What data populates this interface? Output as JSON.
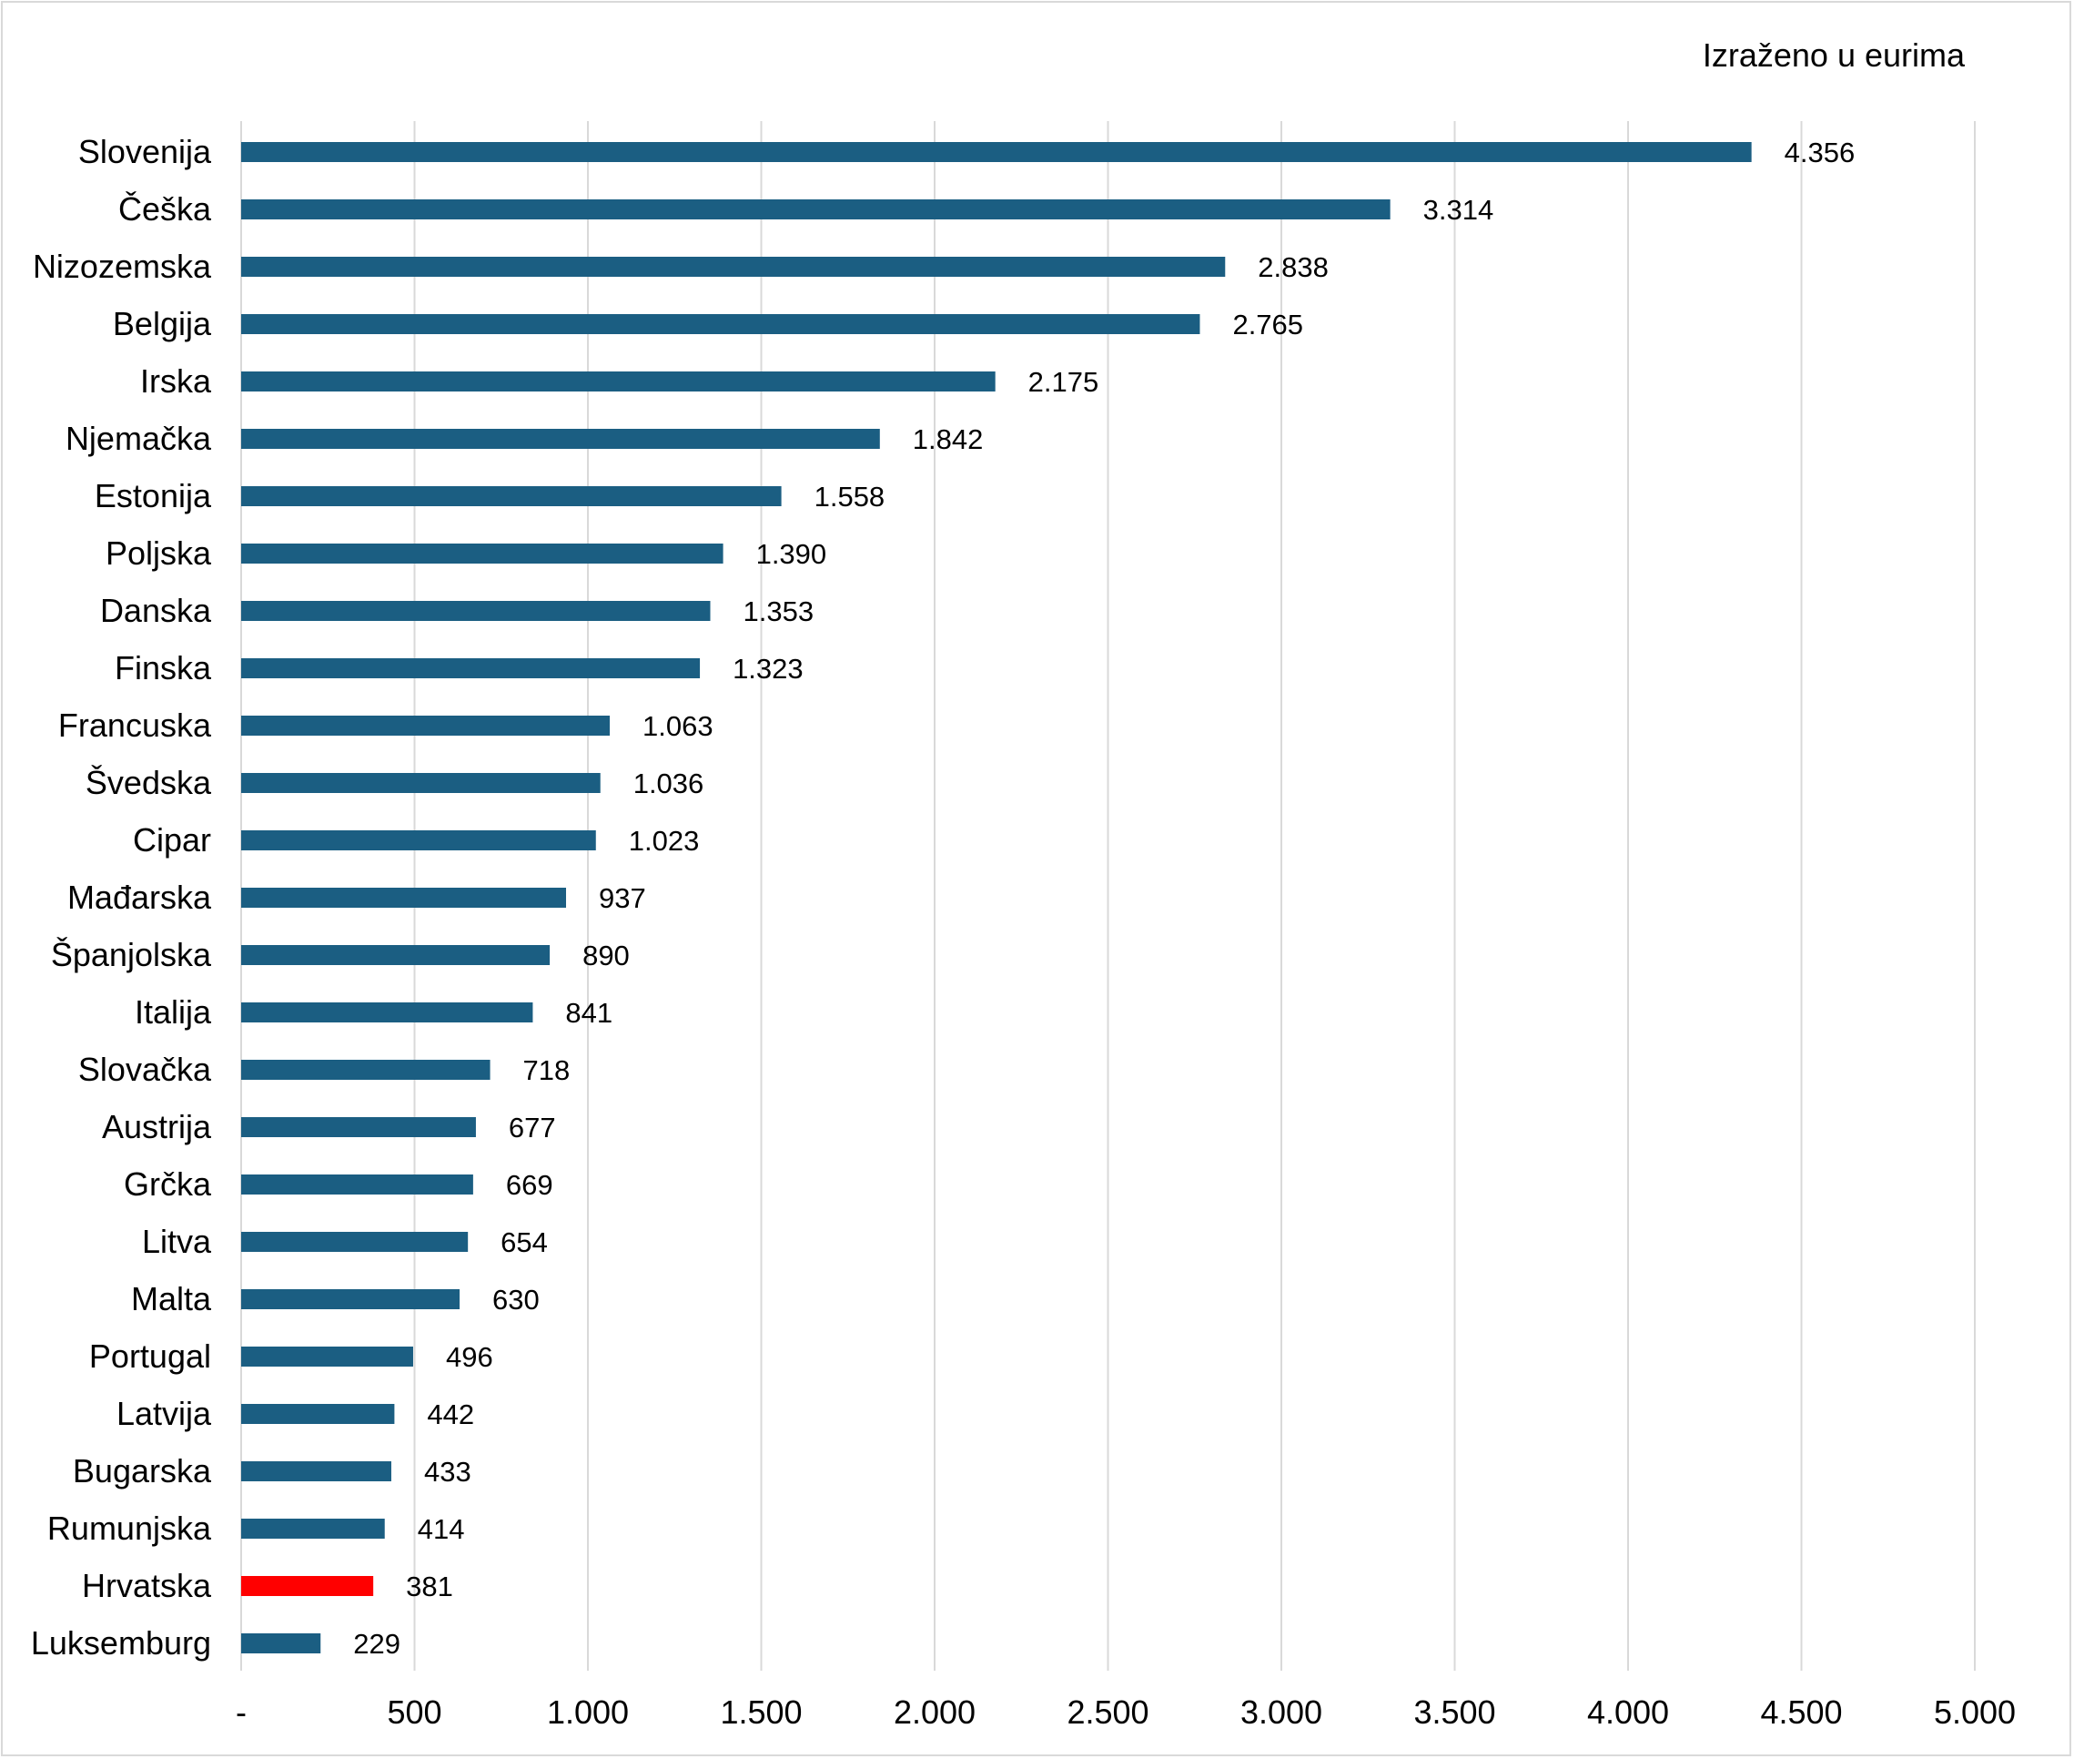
{
  "unit_note": "Izraženo u eurima",
  "colors": {
    "bar": "#1b5e82",
    "highlight": "#ff0000",
    "grid": "#d9d9d9"
  },
  "chart_data": {
    "type": "bar",
    "orientation": "horizontal",
    "categories": [
      "Slovenija",
      "Češka",
      "Nizozemska",
      "Belgija",
      "Irska",
      "Njemačka",
      "Estonija",
      "Poljska",
      "Danska",
      "Finska",
      "Francuska",
      "Švedska",
      "Cipar",
      "Mađarska",
      "Španjolska",
      "Italija",
      "Slovačka",
      "Austrija",
      "Grčka",
      "Litva",
      "Malta",
      "Portugal",
      "Latvija",
      "Bugarska",
      "Rumunjska",
      "Hrvatska",
      "Luksemburg"
    ],
    "values": [
      4356,
      3314,
      2838,
      2765,
      2175,
      1842,
      1558,
      1390,
      1353,
      1323,
      1063,
      1036,
      1023,
      937,
      890,
      841,
      718,
      677,
      669,
      654,
      630,
      496,
      442,
      433,
      414,
      381,
      229
    ],
    "value_labels": [
      "4.356",
      "3.314",
      "2.838",
      "2.765",
      "2.175",
      "1.842",
      "1.558",
      "1.390",
      "1.353",
      "1.323",
      "1.063",
      "1.036",
      "1.023",
      "937",
      "890",
      "841",
      "718",
      "677",
      "669",
      "654",
      "630",
      "496",
      "442",
      "433",
      "414",
      "381",
      "229"
    ],
    "highlight_category": "Hrvatska",
    "xlim": [
      0,
      5000
    ],
    "xticks": [
      0,
      500,
      1000,
      1500,
      2000,
      2500,
      3000,
      3500,
      4000,
      4500,
      5000
    ],
    "xtick_labels": [
      "-",
      "500",
      "1.000",
      "1.500",
      "2.000",
      "2.500",
      "3.000",
      "3.500",
      "4.000",
      "4.500",
      "5.000"
    ],
    "grid": "vertical",
    "title": "",
    "xlabel": "",
    "ylabel": ""
  }
}
